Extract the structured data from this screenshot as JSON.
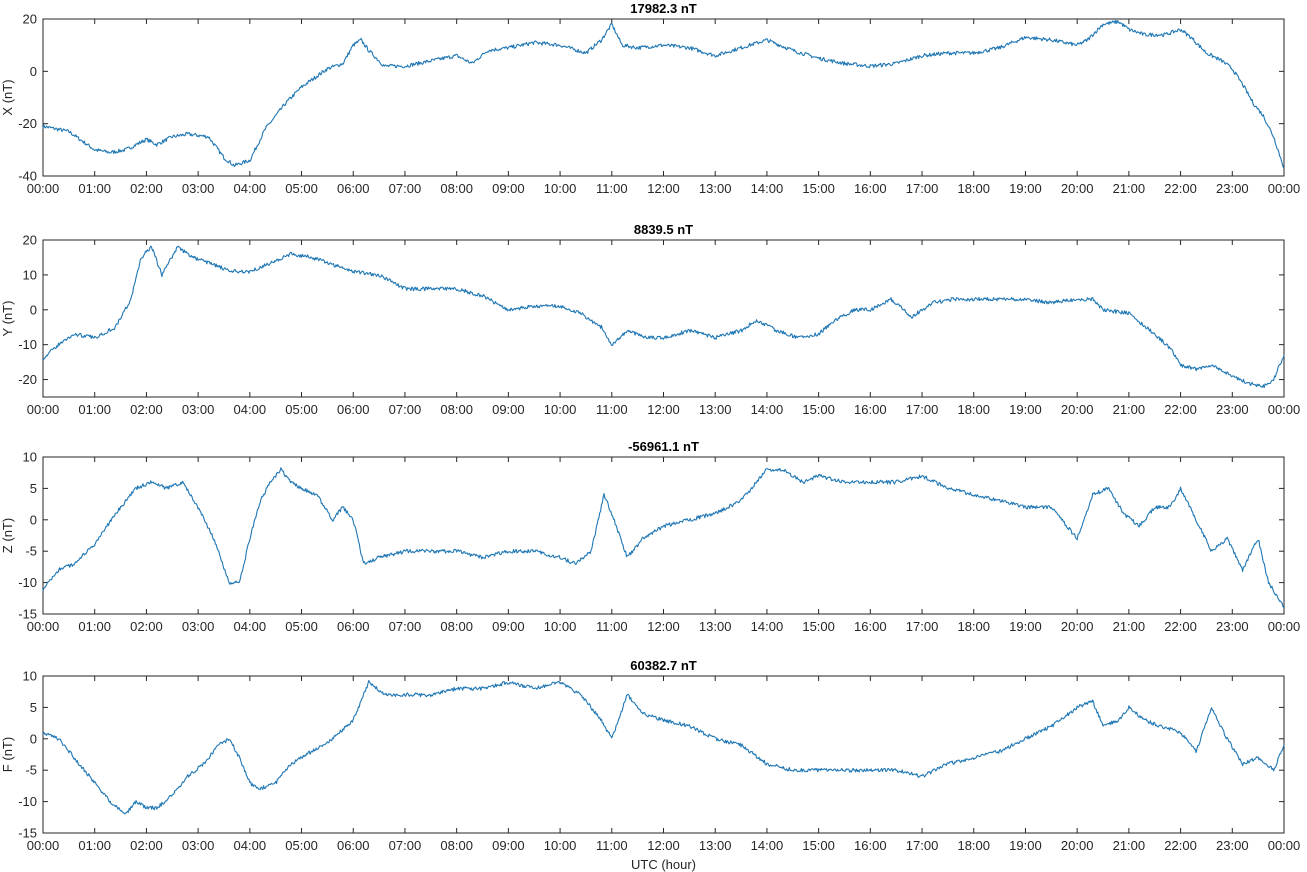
{
  "figure": {
    "xlabel": "UTC (hour)",
    "line_color": "#1f77b4",
    "x_tick_labels": [
      "00:00",
      "01:00",
      "02:00",
      "03:00",
      "04:00",
      "05:00",
      "06:00",
      "07:00",
      "08:00",
      "09:00",
      "10:00",
      "11:00",
      "12:00",
      "13:00",
      "14:00",
      "15:00",
      "16:00",
      "17:00",
      "18:00",
      "19:00",
      "20:00",
      "21:00",
      "22:00",
      "23:00",
      "00:00"
    ]
  },
  "chart_data": [
    {
      "type": "line",
      "title": "17982.3 nT",
      "ylabel": "X (nT)",
      "xlim": [
        0,
        24
      ],
      "ylim": [
        -40,
        20
      ],
      "yticks": [
        -40,
        -20,
        0,
        20
      ],
      "ytick_labels": [
        "-40",
        "-20",
        "0",
        "20"
      ],
      "x": [
        0,
        0.5,
        1,
        1.3,
        1.6,
        1.8,
        2.0,
        2.2,
        2.5,
        2.8,
        3.2,
        3.5,
        3.7,
        4.0,
        4.3,
        4.7,
        5.0,
        5.5,
        5.8,
        6.0,
        6.15,
        6.3,
        6.6,
        7.0,
        7.5,
        8.0,
        8.3,
        8.6,
        9.0,
        9.5,
        10.0,
        10.5,
        10.8,
        11.0,
        11.2,
        11.5,
        12.0,
        12.5,
        13.0,
        13.5,
        14.0,
        14.5,
        15.0,
        15.5,
        16.0,
        16.5,
        17.0,
        17.5,
        18.0,
        18.5,
        19.0,
        19.5,
        20.0,
        20.2,
        20.5,
        20.8,
        21.0,
        21.3,
        21.7,
        22.0,
        22.2,
        22.5,
        22.8,
        23.0,
        23.2,
        23.4,
        23.6,
        23.8,
        24.0
      ],
      "values": [
        -21,
        -23,
        -30,
        -31,
        -30,
        -28,
        -26,
        -28,
        -25,
        -24,
        -25,
        -33,
        -36,
        -34,
        -22,
        -12,
        -6,
        1,
        3,
        10,
        12,
        8,
        2,
        2,
        4,
        6,
        3,
        8,
        9,
        11,
        10,
        7,
        12,
        18,
        10,
        9,
        10,
        9,
        6,
        9,
        12,
        8,
        5,
        3,
        2,
        3,
        6,
        7,
        7,
        9,
        13,
        12,
        10,
        12,
        18,
        19,
        16,
        14,
        14,
        16,
        13,
        7,
        4,
        1,
        -5,
        -12,
        -17,
        -25,
        -37
      ]
    },
    {
      "type": "line",
      "title": "8839.5 nT",
      "ylabel": "Y (nT)",
      "xlim": [
        0,
        24
      ],
      "ylim": [
        -25,
        20
      ],
      "yticks": [
        -20,
        -10,
        0,
        10,
        20
      ],
      "ytick_labels": [
        "-20",
        "-10",
        "0",
        "10",
        "20"
      ],
      "x": [
        0,
        0.3,
        0.6,
        1.0,
        1.4,
        1.7,
        1.9,
        2.1,
        2.3,
        2.6,
        2.9,
        3.3,
        3.6,
        4.0,
        4.5,
        4.8,
        5.2,
        5.6,
        6.0,
        6.5,
        7.0,
        7.5,
        8.0,
        8.5,
        9.0,
        9.5,
        10.0,
        10.4,
        10.8,
        11.0,
        11.3,
        11.7,
        12.0,
        12.5,
        13.0,
        13.5,
        13.8,
        14.2,
        14.6,
        15.0,
        15.3,
        15.7,
        16.0,
        16.4,
        16.8,
        17.2,
        17.6,
        18.0,
        18.5,
        19.0,
        19.5,
        20.0,
        20.3,
        20.5,
        21.0,
        21.5,
        21.8,
        22.0,
        22.3,
        22.6,
        23.0,
        23.3,
        23.6,
        23.8,
        24.0
      ],
      "values": [
        -14,
        -10,
        -7,
        -8,
        -5,
        3,
        15,
        18,
        10,
        18,
        15,
        13,
        11,
        11,
        14,
        16,
        15,
        13,
        11,
        10,
        6,
        6,
        6,
        4,
        0,
        1,
        1,
        -1,
        -5,
        -10,
        -6,
        -8,
        -8,
        -6,
        -8,
        -6,
        -3,
        -6,
        -8,
        -7,
        -3,
        0,
        0,
        3,
        -2,
        2,
        3,
        3,
        3,
        3,
        2,
        3,
        3,
        0,
        -1,
        -7,
        -11,
        -16,
        -17,
        -16,
        -19,
        -21,
        -22,
        -20,
        -13
      ]
    },
    {
      "type": "line",
      "title": "-56961.1 nT",
      "ylabel": "Z (nT)",
      "xlim": [
        0,
        24
      ],
      "ylim": [
        -15,
        10
      ],
      "yticks": [
        -15,
        -10,
        -5,
        0,
        5,
        10
      ],
      "ytick_labels": [
        "-15",
        "-10",
        "-5",
        "0",
        "5",
        "10"
      ],
      "x": [
        0,
        0.3,
        0.6,
        1.0,
        1.4,
        1.8,
        2.1,
        2.4,
        2.7,
        3.0,
        3.3,
        3.6,
        3.8,
        4.0,
        4.2,
        4.4,
        4.6,
        4.8,
        5.0,
        5.3,
        5.6,
        5.8,
        6.0,
        6.2,
        6.5,
        7.0,
        7.5,
        8.0,
        8.5,
        9.0,
        9.5,
        10.0,
        10.3,
        10.6,
        10.85,
        11.0,
        11.3,
        11.6,
        12.0,
        12.5,
        13.0,
        13.5,
        14.0,
        14.3,
        14.7,
        15.0,
        15.5,
        16.0,
        16.5,
        17.0,
        17.5,
        18.0,
        18.5,
        19.0,
        19.5,
        20.0,
        20.3,
        20.6,
        20.9,
        21.2,
        21.5,
        21.8,
        22.0,
        22.3,
        22.6,
        22.9,
        23.2,
        23.5,
        23.7,
        24.0
      ],
      "values": [
        -11,
        -8,
        -7,
        -4,
        1,
        5,
        6,
        5,
        6,
        2,
        -3,
        -10,
        -10,
        -3,
        3,
        6,
        8,
        6,
        5,
        4,
        0,
        2,
        0,
        -7,
        -6,
        -5,
        -5,
        -5,
        -6,
        -5,
        -5,
        -6,
        -7,
        -5,
        4,
        1,
        -6,
        -3,
        -1,
        0,
        1,
        3,
        8,
        8,
        6,
        7,
        6,
        6,
        6,
        7,
        5,
        4,
        3,
        2,
        2,
        -3,
        4,
        5,
        1,
        -1,
        2,
        2,
        5,
        0,
        -5,
        -3,
        -8,
        -3,
        -10,
        -14
      ]
    },
    {
      "type": "line",
      "title": "60382.7 nT",
      "ylabel": "F (nT)",
      "xlim": [
        0,
        24
      ],
      "ylim": [
        -15,
        10
      ],
      "yticks": [
        -15,
        -10,
        -5,
        0,
        5,
        10
      ],
      "ytick_labels": [
        "-15",
        "-10",
        "-5",
        "0",
        "5",
        "10"
      ],
      "x": [
        0,
        0.3,
        0.7,
        1.0,
        1.3,
        1.6,
        1.8,
        2.0,
        2.2,
        2.5,
        2.8,
        3.1,
        3.4,
        3.6,
        3.8,
        4.0,
        4.2,
        4.5,
        4.8,
        5.2,
        5.6,
        6.0,
        6.3,
        6.6,
        7.0,
        7.5,
        8.0,
        8.5,
        9.0,
        9.5,
        10.0,
        10.4,
        10.8,
        11.0,
        11.3,
        11.6,
        12.0,
        12.5,
        13.0,
        13.5,
        14.0,
        14.5,
        15.0,
        15.5,
        16.0,
        16.5,
        17.0,
        17.5,
        18.0,
        18.5,
        19.0,
        19.5,
        20.0,
        20.3,
        20.5,
        20.8,
        21.0,
        21.3,
        21.6,
        22.0,
        22.3,
        22.6,
        22.9,
        23.2,
        23.5,
        23.8,
        24.0
      ],
      "values": [
        1,
        0,
        -4,
        -7,
        -10,
        -12,
        -10,
        -11,
        -11,
        -9,
        -6,
        -4,
        -1,
        0,
        -3,
        -7,
        -8,
        -7,
        -4,
        -2,
        0,
        3,
        9,
        7,
        7,
        7,
        8,
        8,
        9,
        8,
        9,
        7,
        3,
        0,
        7,
        4,
        3,
        2,
        0,
        -1,
        -4,
        -5,
        -5,
        -5,
        -5,
        -5,
        -6,
        -4,
        -3,
        -2,
        0,
        2,
        5,
        6,
        2,
        3,
        5,
        3,
        2,
        1,
        -2,
        5,
        0,
        -4,
        -3,
        -5,
        -1
      ]
    }
  ]
}
